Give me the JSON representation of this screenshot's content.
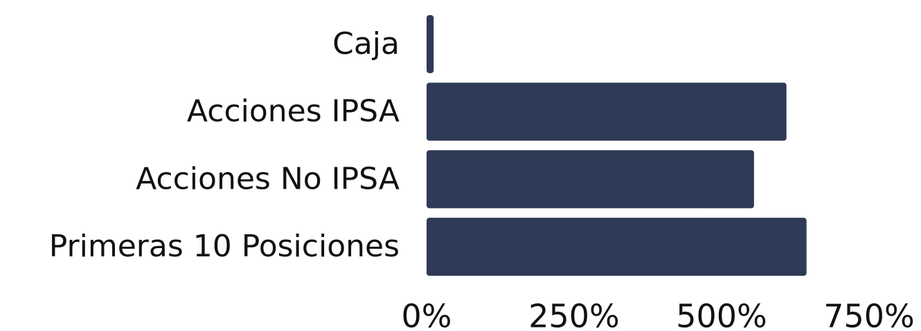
{
  "chart_data": {
    "type": "bar",
    "orientation": "horizontal",
    "categories": [
      "Caja",
      "Acciones IPSA",
      "Acciones No IPSA",
      "Primeras 10 Posiciones"
    ],
    "values": [
      12,
      610,
      555,
      644
    ],
    "color": "#2f3a56",
    "xlim": [
      0,
      750
    ],
    "xticks": [
      {
        "value": 0,
        "label": "0%"
      },
      {
        "value": 250,
        "label": "250%"
      },
      {
        "value": 500,
        "label": "500%"
      },
      {
        "value": 750,
        "label": "750%"
      }
    ],
    "grid": false
  }
}
